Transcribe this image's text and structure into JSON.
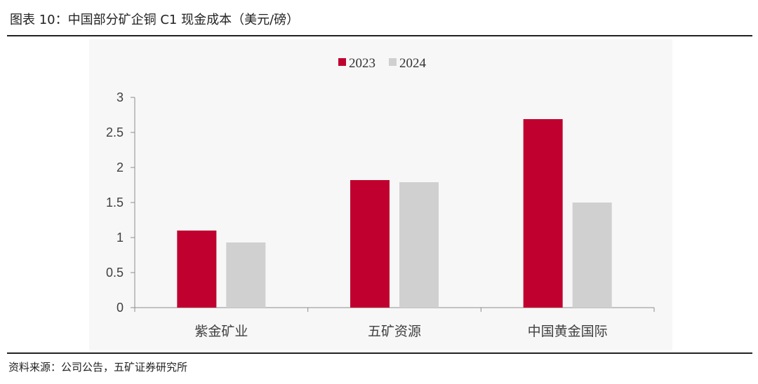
{
  "header": {
    "title": "图表 10：中国部分矿企铜 C1 现金成本（美元/磅）"
  },
  "footer": {
    "source": "资料来源：公司公告，五矿证券研究所"
  },
  "chart_data": {
    "type": "bar",
    "categories": [
      "紫金矿业",
      "五矿资源",
      "中国黄金国际"
    ],
    "series": [
      {
        "name": "2023",
        "values": [
          1.1,
          1.82,
          2.69
        ],
        "color": "#c0002e"
      },
      {
        "name": "2024",
        "values": [
          0.93,
          1.79,
          1.5
        ],
        "color": "#d0d0d0"
      }
    ],
    "y_ticks": [
      "0",
      "0.5",
      "1",
      "1.5",
      "2",
      "2.5",
      "3"
    ],
    "ylim": [
      0,
      3
    ],
    "xlabel": "",
    "ylabel": "",
    "legend_position": "top-center",
    "grid": false
  }
}
